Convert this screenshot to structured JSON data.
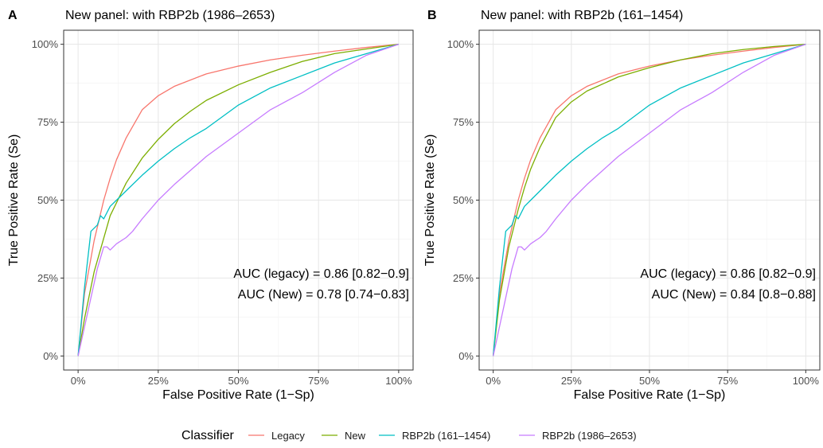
{
  "chart_data": [
    {
      "type": "line",
      "tag": "A",
      "title": "New panel: with RBP2b (1986–2653)",
      "xlabel": "False Positive Rate (1−Sp)",
      "ylabel": "True Positive Rate (Se)",
      "xlim": [
        0,
        1
      ],
      "ylim": [
        0,
        1
      ],
      "xticks": [
        0,
        0.25,
        0.5,
        0.75,
        1
      ],
      "yticks": [
        0,
        0.25,
        0.5,
        0.75,
        1
      ],
      "xtick_labels": [
        "0%",
        "25%",
        "50%",
        "75%",
        "100%"
      ],
      "ytick_labels": [
        "0%",
        "25%",
        "50%",
        "75%",
        "100%"
      ],
      "annotations": [
        "AUC (legacy) = 0.86 [0.82−0.9]",
        "AUC (New) = 0.78 [0.74−0.83]"
      ],
      "series": [
        {
          "name": "Legacy",
          "x": [
            0,
            0.02,
            0.05,
            0.08,
            0.1,
            0.12,
            0.15,
            0.2,
            0.25,
            0.3,
            0.4,
            0.5,
            0.6,
            0.7,
            0.8,
            0.9,
            1
          ],
          "y": [
            0,
            0.2,
            0.37,
            0.5,
            0.57,
            0.63,
            0.7,
            0.79,
            0.835,
            0.865,
            0.905,
            0.93,
            0.95,
            0.965,
            0.978,
            0.99,
            1
          ]
        },
        {
          "name": "New",
          "x": [
            0,
            0.02,
            0.05,
            0.1,
            0.15,
            0.2,
            0.25,
            0.3,
            0.35,
            0.4,
            0.5,
            0.6,
            0.7,
            0.8,
            0.9,
            1
          ],
          "y": [
            0,
            0.12,
            0.27,
            0.45,
            0.555,
            0.635,
            0.695,
            0.745,
            0.785,
            0.82,
            0.87,
            0.91,
            0.945,
            0.97,
            0.985,
            1
          ]
        },
        {
          "name": "RBP2b (161–1454)",
          "x": [
            0,
            0.02,
            0.04,
            0.06,
            0.07,
            0.08,
            0.1,
            0.12,
            0.15,
            0.2,
            0.25,
            0.3,
            0.35,
            0.4,
            0.5,
            0.6,
            0.7,
            0.8,
            0.9,
            1
          ],
          "y": [
            0,
            0.22,
            0.4,
            0.42,
            0.45,
            0.44,
            0.48,
            0.5,
            0.53,
            0.58,
            0.625,
            0.665,
            0.7,
            0.73,
            0.805,
            0.86,
            0.9,
            0.94,
            0.97,
            1
          ]
        },
        {
          "name": "RBP2b (1986–2653)",
          "x": [
            0,
            0.03,
            0.06,
            0.08,
            0.09,
            0.1,
            0.12,
            0.15,
            0.17,
            0.2,
            0.25,
            0.3,
            0.4,
            0.5,
            0.6,
            0.7,
            0.8,
            0.9,
            1
          ],
          "y": [
            0,
            0.14,
            0.28,
            0.35,
            0.35,
            0.34,
            0.36,
            0.38,
            0.4,
            0.44,
            0.5,
            0.55,
            0.64,
            0.715,
            0.79,
            0.845,
            0.91,
            0.965,
            1
          ]
        }
      ]
    },
    {
      "type": "line",
      "tag": "B",
      "title": "New panel: with RBP2b (161–1454)",
      "xlabel": "False Positive Rate (1−Sp)",
      "ylabel": "True Positive Rate (Se)",
      "xlim": [
        0,
        1
      ],
      "ylim": [
        0,
        1
      ],
      "xticks": [
        0,
        0.25,
        0.5,
        0.75,
        1
      ],
      "yticks": [
        0,
        0.25,
        0.5,
        0.75,
        1
      ],
      "xtick_labels": [
        "0%",
        "25%",
        "50%",
        "75%",
        "100%"
      ],
      "ytick_labels": [
        "0%",
        "25%",
        "50%",
        "75%",
        "100%"
      ],
      "annotations": [
        "AUC (legacy) = 0.86 [0.82−0.9]",
        "AUC (New) = 0.84 [0.8−0.88]"
      ],
      "series": [
        {
          "name": "Legacy",
          "x": [
            0,
            0.02,
            0.05,
            0.08,
            0.1,
            0.12,
            0.15,
            0.2,
            0.25,
            0.3,
            0.4,
            0.5,
            0.6,
            0.7,
            0.8,
            0.9,
            1
          ],
          "y": [
            0,
            0.2,
            0.37,
            0.5,
            0.57,
            0.63,
            0.7,
            0.79,
            0.835,
            0.865,
            0.905,
            0.93,
            0.95,
            0.965,
            0.978,
            0.99,
            1
          ]
        },
        {
          "name": "New",
          "x": [
            0,
            0.02,
            0.05,
            0.08,
            0.1,
            0.12,
            0.15,
            0.2,
            0.25,
            0.3,
            0.4,
            0.5,
            0.6,
            0.7,
            0.8,
            0.9,
            1
          ],
          "y": [
            0,
            0.18,
            0.35,
            0.47,
            0.54,
            0.6,
            0.67,
            0.765,
            0.815,
            0.85,
            0.895,
            0.925,
            0.95,
            0.97,
            0.983,
            0.993,
            1
          ]
        },
        {
          "name": "RBP2b (161–1454)",
          "x": [
            0,
            0.02,
            0.04,
            0.06,
            0.07,
            0.08,
            0.1,
            0.12,
            0.15,
            0.2,
            0.25,
            0.3,
            0.35,
            0.4,
            0.5,
            0.6,
            0.7,
            0.8,
            0.9,
            1
          ],
          "y": [
            0,
            0.22,
            0.4,
            0.42,
            0.45,
            0.44,
            0.48,
            0.5,
            0.53,
            0.58,
            0.625,
            0.665,
            0.7,
            0.73,
            0.805,
            0.86,
            0.9,
            0.94,
            0.97,
            1
          ]
        },
        {
          "name": "RBP2b (1986–2653)",
          "x": [
            0,
            0.03,
            0.06,
            0.08,
            0.09,
            0.1,
            0.12,
            0.15,
            0.17,
            0.2,
            0.25,
            0.3,
            0.4,
            0.5,
            0.6,
            0.7,
            0.8,
            0.9,
            1
          ],
          "y": [
            0,
            0.14,
            0.28,
            0.35,
            0.35,
            0.34,
            0.36,
            0.38,
            0.4,
            0.44,
            0.5,
            0.55,
            0.64,
            0.715,
            0.79,
            0.845,
            0.91,
            0.965,
            1
          ]
        }
      ]
    }
  ],
  "legend": {
    "title": "Classifier",
    "items": [
      {
        "label": "Legacy",
        "color": "#F8766D"
      },
      {
        "label": "New",
        "color": "#7CAE00"
      },
      {
        "label": "RBP2b (161–1454)",
        "color": "#00BFC4"
      },
      {
        "label": "RBP2b (1986–2653)",
        "color": "#C77CFF"
      }
    ]
  }
}
